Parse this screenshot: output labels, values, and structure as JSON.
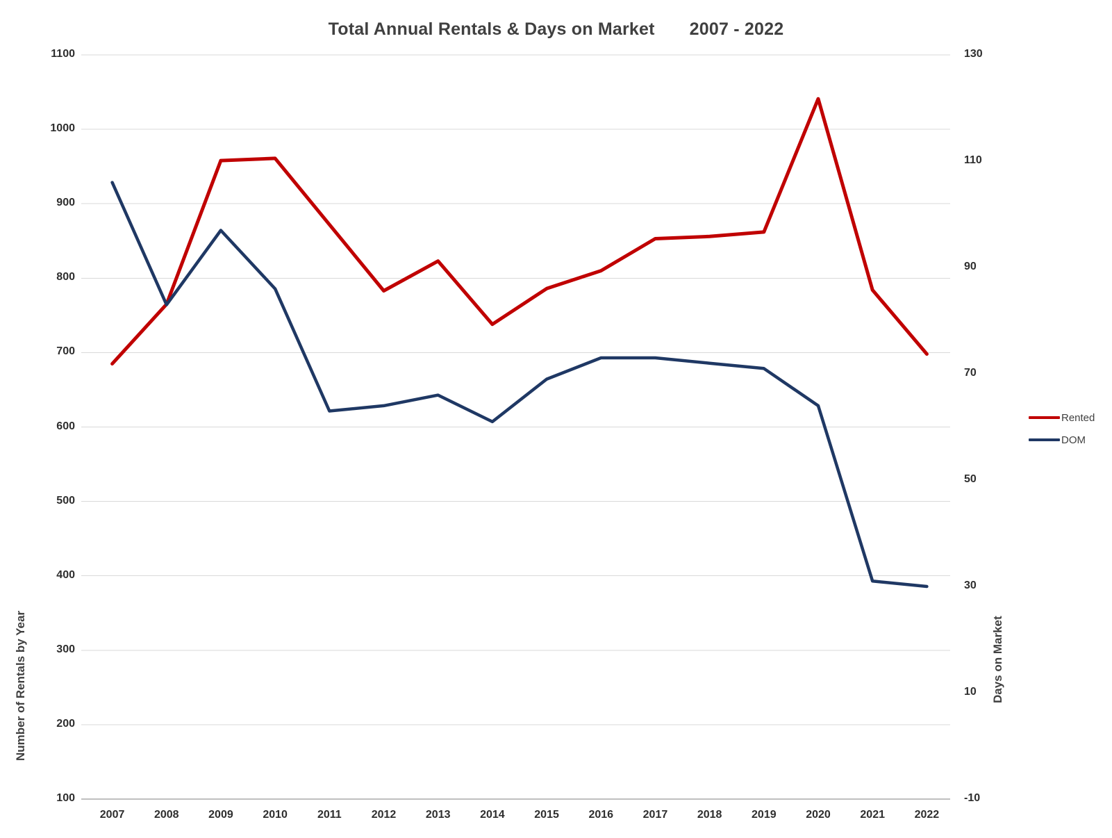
{
  "chart_data": {
    "type": "line",
    "title": "Total Annual Rentals & Days on Market",
    "title_range": "2007 - 2022",
    "categories": [
      "2007",
      "2008",
      "2009",
      "2010",
      "2011",
      "2012",
      "2013",
      "2014",
      "2015",
      "2016",
      "2017",
      "2018",
      "2019",
      "2020",
      "2021",
      "2022"
    ],
    "series": [
      {
        "name": "Rented",
        "axis": "left",
        "color": "#C00000",
        "stroke_width": 5,
        "values": [
          685,
          765,
          958,
          961,
          872,
          783,
          823,
          738,
          786,
          810,
          853,
          856,
          862,
          1041,
          784,
          698
        ]
      },
      {
        "name": "DOM",
        "axis": "right",
        "color": "#1F3864",
        "stroke_width": 4.5,
        "values": [
          106,
          83,
          97,
          86,
          63,
          64,
          66,
          61,
          69,
          73,
          73,
          72,
          71,
          64,
          31,
          30
        ]
      }
    ],
    "left_axis": {
      "title": "Number of Rentals by Year",
      "min": 100,
      "max": 1100,
      "step": 100
    },
    "right_axis": {
      "title": "Days on Market",
      "min": -10,
      "max": 130,
      "step": 20
    },
    "grid": true,
    "legend_position": "right"
  },
  "colors": {
    "background": "#FFFFFF",
    "gridline": "#D9D9D9",
    "axis_line": "#BFBFBF",
    "tick_text": "#2E2E2E",
    "title_text": "#404040"
  }
}
